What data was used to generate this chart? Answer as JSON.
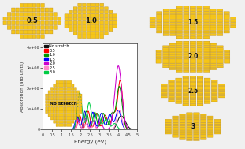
{
  "bg_color": "#f0f0f0",
  "gold_fill": "#F5C518",
  "gold_dark": "#B8860B",
  "plot_bg": "#ffffff",
  "axis_color": "#333333",
  "legend_entries": [
    "No stretch",
    "0.5",
    "1.0",
    "1.5",
    "2.0",
    "2.5",
    "3.0"
  ],
  "line_colors": [
    "#111111",
    "#ff0000",
    "#009900",
    "#0000ff",
    "#cc00cc",
    "#ff88cc",
    "#00cc44"
  ],
  "title_x": "Energy (eV)",
  "title_y": "Absorption (arb.units)",
  "xlim": [
    0,
    5
  ],
  "ylim": [
    0,
    4200000
  ],
  "yticks": [
    0,
    1000000,
    2000000,
    3000000,
    4000000
  ],
  "xticks": [
    0,
    0.5,
    1,
    1.5,
    2,
    2.5,
    3,
    3.5,
    4,
    4.5,
    5
  ]
}
